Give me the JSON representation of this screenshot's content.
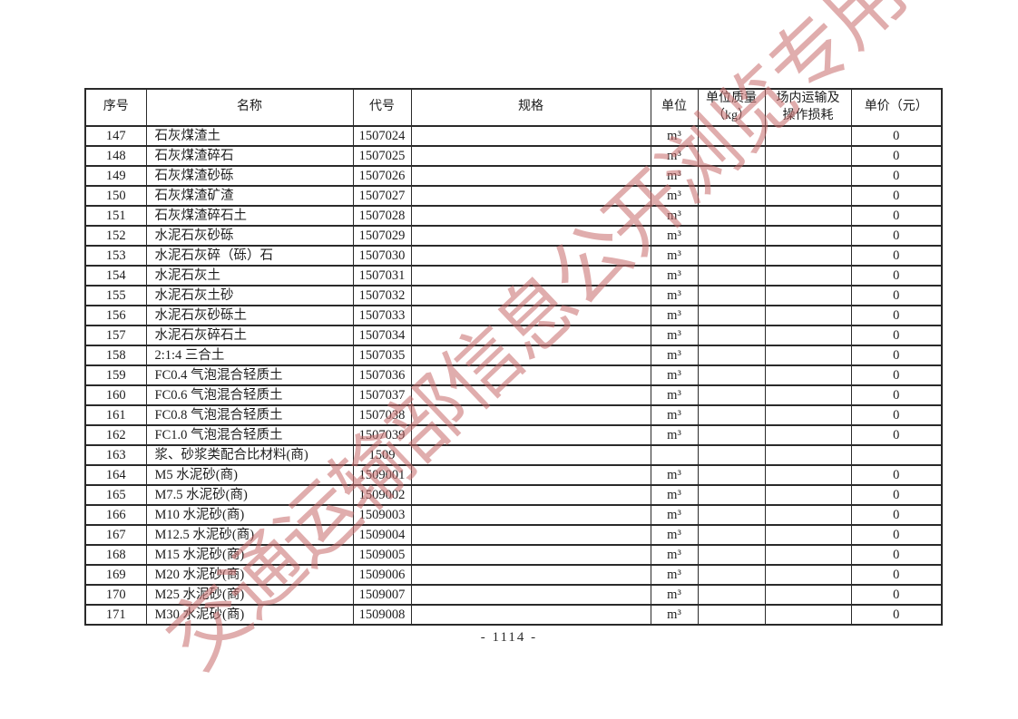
{
  "page": {
    "number_label": "- 1114 -",
    "watermark_text": "交通运输部信息公开浏览专用",
    "watermark_color": "rgba(199,106,106,0.55)",
    "border_color": "#2a2a2a"
  },
  "table": {
    "headers": {
      "no": "序号",
      "name": "名称",
      "code": "代号",
      "spec": "规格",
      "unit": "单位",
      "mass": "单位质量\n（kg）",
      "loss": "场内运输及\n操作损耗",
      "price": "单价（元）"
    },
    "rows": [
      {
        "no": "147",
        "name": "石灰煤渣土",
        "code": "1507024",
        "spec": "",
        "unit": "m³",
        "mass": "",
        "loss": "",
        "price": "0"
      },
      {
        "no": "148",
        "name": "石灰煤渣碎石",
        "code": "1507025",
        "spec": "",
        "unit": "m³",
        "mass": "",
        "loss": "",
        "price": "0"
      },
      {
        "no": "149",
        "name": "石灰煤渣砂砾",
        "code": "1507026",
        "spec": "",
        "unit": "m³",
        "mass": "",
        "loss": "",
        "price": "0"
      },
      {
        "no": "150",
        "name": "石灰煤渣矿渣",
        "code": "1507027",
        "spec": "",
        "unit": "m³",
        "mass": "",
        "loss": "",
        "price": "0"
      },
      {
        "no": "151",
        "name": "石灰煤渣碎石土",
        "code": "1507028",
        "spec": "",
        "unit": "m³",
        "mass": "",
        "loss": "",
        "price": "0"
      },
      {
        "no": "152",
        "name": "水泥石灰砂砾",
        "code": "1507029",
        "spec": "",
        "unit": "m³",
        "mass": "",
        "loss": "",
        "price": "0"
      },
      {
        "no": "153",
        "name": "水泥石灰碎（砾）石",
        "code": "1507030",
        "spec": "",
        "unit": "m³",
        "mass": "",
        "loss": "",
        "price": "0"
      },
      {
        "no": "154",
        "name": "水泥石灰土",
        "code": "1507031",
        "spec": "",
        "unit": "m³",
        "mass": "",
        "loss": "",
        "price": "0"
      },
      {
        "no": "155",
        "name": "水泥石灰土砂",
        "code": "1507032",
        "spec": "",
        "unit": "m³",
        "mass": "",
        "loss": "",
        "price": "0"
      },
      {
        "no": "156",
        "name": "水泥石灰砂砾土",
        "code": "1507033",
        "spec": "",
        "unit": "m³",
        "mass": "",
        "loss": "",
        "price": "0"
      },
      {
        "no": "157",
        "name": "水泥石灰碎石土",
        "code": "1507034",
        "spec": "",
        "unit": "m³",
        "mass": "",
        "loss": "",
        "price": "0"
      },
      {
        "no": "158",
        "name": "2:1:4 三合土",
        "code": "1507035",
        "spec": "",
        "unit": "m³",
        "mass": "",
        "loss": "",
        "price": "0"
      },
      {
        "no": "159",
        "name": "FC0.4 气泡混合轻质土",
        "code": "1507036",
        "spec": "",
        "unit": "m³",
        "mass": "",
        "loss": "",
        "price": "0"
      },
      {
        "no": "160",
        "name": "FC0.6 气泡混合轻质土",
        "code": "1507037",
        "spec": "",
        "unit": "m³",
        "mass": "",
        "loss": "",
        "price": "0"
      },
      {
        "no": "161",
        "name": "FC0.8 气泡混合轻质土",
        "code": "1507038",
        "spec": "",
        "unit": "m³",
        "mass": "",
        "loss": "",
        "price": "0"
      },
      {
        "no": "162",
        "name": "FC1.0 气泡混合轻质土",
        "code": "1507039",
        "spec": "",
        "unit": "m³",
        "mass": "",
        "loss": "",
        "price": "0"
      },
      {
        "no": "163",
        "name": "浆、砂浆类配合比材料(商)",
        "code": "1509",
        "spec": "",
        "unit": "",
        "mass": "",
        "loss": "",
        "price": ""
      },
      {
        "no": "164",
        "name": "M5 水泥砂(商)",
        "code": "1509001",
        "spec": "",
        "unit": "m³",
        "mass": "",
        "loss": "",
        "price": "0"
      },
      {
        "no": "165",
        "name": "M7.5 水泥砂(商)",
        "code": "1509002",
        "spec": "",
        "unit": "m³",
        "mass": "",
        "loss": "",
        "price": "0"
      },
      {
        "no": "166",
        "name": "M10 水泥砂(商)",
        "code": "1509003",
        "spec": "",
        "unit": "m³",
        "mass": "",
        "loss": "",
        "price": "0"
      },
      {
        "no": "167",
        "name": "M12.5 水泥砂(商)",
        "code": "1509004",
        "spec": "",
        "unit": "m³",
        "mass": "",
        "loss": "",
        "price": "0"
      },
      {
        "no": "168",
        "name": "M15 水泥砂(商)",
        "code": "1509005",
        "spec": "",
        "unit": "m³",
        "mass": "",
        "loss": "",
        "price": "0"
      },
      {
        "no": "169",
        "name": "M20 水泥砂(商)",
        "code": "1509006",
        "spec": "",
        "unit": "m³",
        "mass": "",
        "loss": "",
        "price": "0"
      },
      {
        "no": "170",
        "name": "M25 水泥砂(商)",
        "code": "1509007",
        "spec": "",
        "unit": "m³",
        "mass": "",
        "loss": "",
        "price": "0"
      },
      {
        "no": "171",
        "name": "M30 水泥砂(商)",
        "code": "1509008",
        "spec": "",
        "unit": "m³",
        "mass": "",
        "loss": "",
        "price": "0"
      }
    ]
  }
}
